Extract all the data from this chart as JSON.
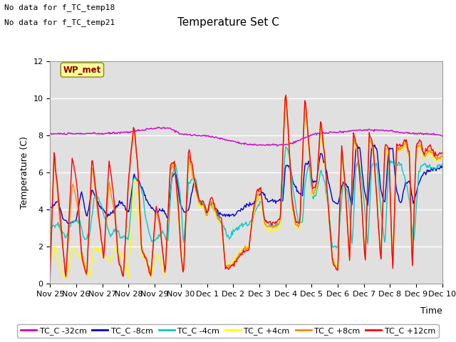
{
  "title": "Temperature Set C",
  "xlabel": "Time",
  "ylabel": "Temperature (C)",
  "ylim": [
    0,
    12
  ],
  "bg_color": "#e0e0e0",
  "fig_color": "#ffffff",
  "no_data_text": [
    "No data for f_TC_temp18",
    "No data for f_TC_temp21"
  ],
  "wp_met_label": "WP_met",
  "series_colors": {
    "TC_C -32cm": "#cc00cc",
    "TC_C -8cm": "#0000cc",
    "TC_C -4cm": "#00cccc",
    "TC_C +4cm": "#ffff00",
    "TC_C +8cm": "#ff8800",
    "TC_C +12cm": "#ff0000"
  },
  "xtick_labels": [
    "Nov 25",
    "Nov 26",
    "Nov 27",
    "Nov 28",
    "Nov 29",
    "Nov 30",
    "Dec 1",
    "Dec 2",
    "Dec 3",
    "Dec 4",
    "Dec 5",
    "Dec 6",
    "Dec 7",
    "Dec 8",
    "Dec 9",
    "Dec 10"
  ],
  "n_points": 500,
  "font_size": 9,
  "title_font_size": 11
}
